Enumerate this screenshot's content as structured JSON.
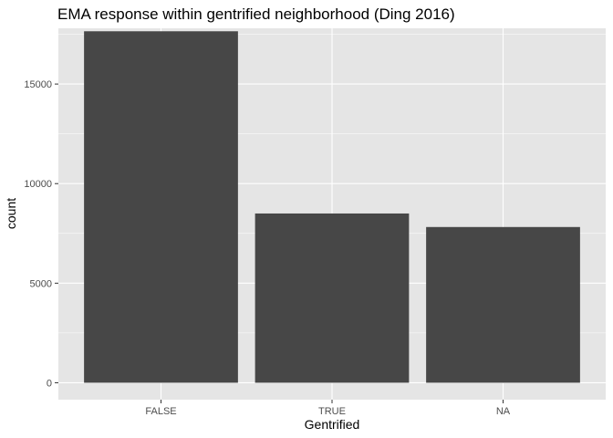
{
  "chart_data": {
    "type": "bar",
    "title": "EMA response within gentrified neighborhood (Ding 2016)",
    "xlabel": "Gentrified",
    "ylabel": "count",
    "categories": [
      "FALSE",
      "TRUE",
      "NA"
    ],
    "values": [
      17650,
      8500,
      7820
    ],
    "ylim": [
      -850,
      17800
    ],
    "yticks": [
      0,
      5000,
      10000,
      15000
    ],
    "ytick_labels": [
      "0",
      "5000",
      "10000",
      "15000"
    ],
    "grid": true,
    "legend": "none",
    "colors": {
      "bar": "#474747",
      "panel": "#e5e5e5",
      "grid": "#ffffff"
    }
  }
}
